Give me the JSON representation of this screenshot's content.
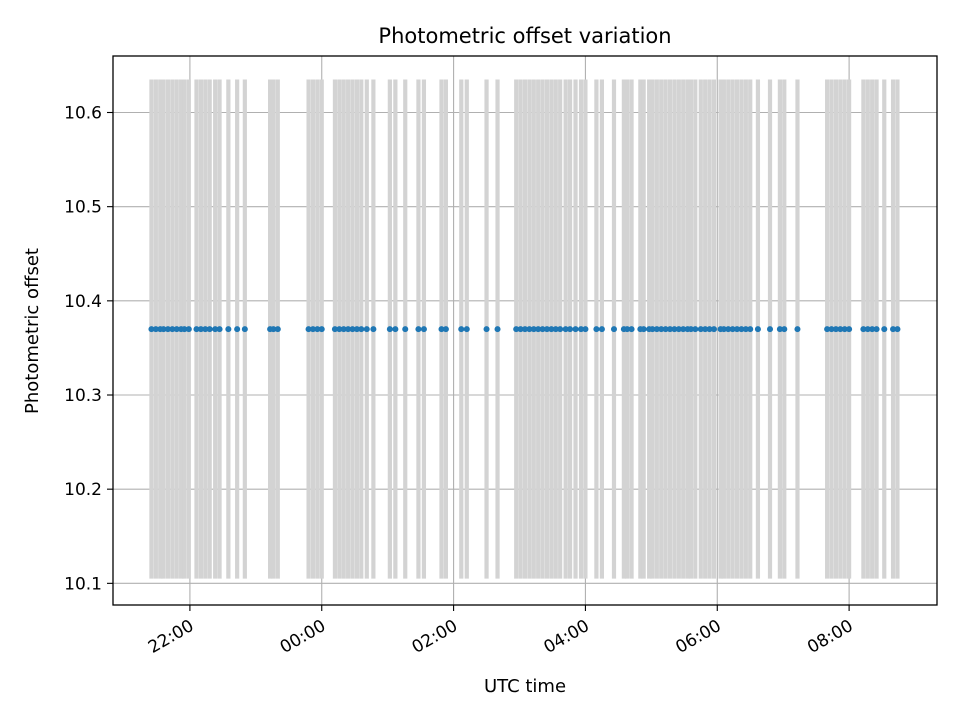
{
  "chart_data": {
    "type": "scatter",
    "title": "Photometric offset variation",
    "xlabel": "UTC time",
    "ylabel": "Photometric offset",
    "x_axis": {
      "kind": "time",
      "range_start": "2000-01-01T20:50",
      "range_end": "2000-01-02T09:20",
      "ticks": [
        "2000-01-01T22:00",
        "2000-01-02T00:00",
        "2000-01-02T02:00",
        "2000-01-02T04:00",
        "2000-01-02T06:00",
        "2000-01-02T08:00"
      ],
      "tick_labels": [
        "22:00",
        "00:00",
        "02:00",
        "04:00",
        "06:00",
        "08:00"
      ]
    },
    "ylim": [
      10.077,
      10.66
    ],
    "yticks": [
      10.1,
      10.2,
      10.3,
      10.4,
      10.5,
      10.6
    ],
    "ytick_labels": [
      "10.1",
      "10.2",
      "10.3",
      "10.4",
      "10.5",
      "10.6"
    ],
    "grid": true,
    "series": [
      {
        "kind": "vertical_spans",
        "color": "#d3d3d3",
        "y_range": [
          10.105,
          10.635
        ],
        "x": [
          "21:25",
          "21:29",
          "21:33",
          "21:36",
          "21:40",
          "21:44",
          "21:48",
          "21:52",
          "21:55",
          "21:59",
          "22:06",
          "22:10",
          "22:14",
          "22:18",
          "22:23",
          "22:27",
          "22:35",
          "22:43",
          "22:50",
          "23:13",
          "23:16",
          "23:20",
          "23:48",
          "23:52",
          "23:56",
          "00:00",
          "00:12",
          "00:16",
          "00:20",
          "00:24",
          "00:28",
          "00:32",
          "00:36",
          "00:41",
          "00:47",
          "01:02",
          "01:07",
          "01:16",
          "01:28",
          "01:33",
          "01:49",
          "01:53",
          "02:07",
          "02:12",
          "02:30",
          "02:40",
          "02:57",
          "03:01",
          "03:05",
          "03:09",
          "03:13",
          "03:17",
          "03:21",
          "03:25",
          "03:29",
          "03:33",
          "03:37",
          "03:42",
          "03:46",
          "03:51",
          "03:56",
          "04:00",
          "04:10",
          "04:15",
          "04:26",
          "04:35",
          "04:38",
          "04:42",
          "04:50",
          "04:53",
          "04:58",
          "05:01",
          "05:05",
          "05:09",
          "05:13",
          "05:17",
          "05:21",
          "05:25",
          "05:29",
          "05:33",
          "05:36",
          "05:40",
          "05:45",
          "05:49",
          "05:53",
          "05:57",
          "06:03",
          "06:06",
          "06:10",
          "06:14",
          "06:18",
          "06:22",
          "06:26",
          "06:30",
          "06:37",
          "06:48",
          "06:57",
          "07:01",
          "07:13",
          "07:40",
          "07:44",
          "07:48",
          "07:52",
          "07:56",
          "08:00",
          "08:13",
          "08:17",
          "08:21",
          "08:25",
          "08:32",
          "08:40",
          "08:44"
        ]
      },
      {
        "kind": "points",
        "color": "#1f77b4",
        "x": [
          "21:25",
          "21:29",
          "21:33",
          "21:36",
          "21:40",
          "21:44",
          "21:48",
          "21:52",
          "21:55",
          "21:59",
          "22:06",
          "22:10",
          "22:14",
          "22:18",
          "22:23",
          "22:27",
          "22:35",
          "22:43",
          "22:50",
          "23:13",
          "23:16",
          "23:20",
          "23:48",
          "23:52",
          "23:56",
          "00:00",
          "00:12",
          "00:16",
          "00:20",
          "00:24",
          "00:28",
          "00:32",
          "00:36",
          "00:41",
          "00:47",
          "01:02",
          "01:07",
          "01:16",
          "01:28",
          "01:33",
          "01:49",
          "01:53",
          "02:07",
          "02:12",
          "02:30",
          "02:40",
          "02:57",
          "03:01",
          "03:05",
          "03:09",
          "03:13",
          "03:17",
          "03:21",
          "03:25",
          "03:29",
          "03:33",
          "03:37",
          "03:42",
          "03:46",
          "03:51",
          "03:56",
          "04:00",
          "04:10",
          "04:15",
          "04:26",
          "04:35",
          "04:38",
          "04:42",
          "04:50",
          "04:53",
          "04:58",
          "05:01",
          "05:05",
          "05:09",
          "05:13",
          "05:17",
          "05:21",
          "05:25",
          "05:29",
          "05:33",
          "05:36",
          "05:40",
          "05:45",
          "05:49",
          "05:53",
          "05:57",
          "06:03",
          "06:06",
          "06:10",
          "06:14",
          "06:18",
          "06:22",
          "06:26",
          "06:30",
          "06:37",
          "06:48",
          "06:57",
          "07:01",
          "07:13",
          "07:40",
          "07:44",
          "07:48",
          "07:52",
          "07:56",
          "08:00",
          "08:13",
          "08:17",
          "08:21",
          "08:25",
          "08:32",
          "08:40",
          "08:44"
        ],
        "y": 10.37
      }
    ]
  }
}
